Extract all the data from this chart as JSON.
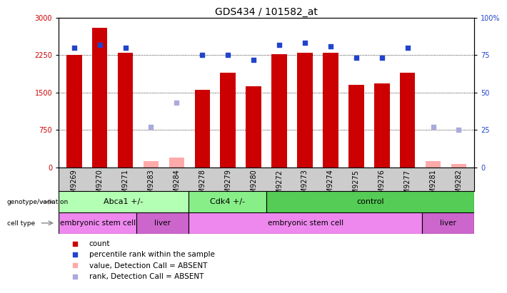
{
  "title": "GDS434 / 101582_at",
  "samples": [
    "GSM9269",
    "GSM9270",
    "GSM9271",
    "GSM9283",
    "GSM9284",
    "GSM9278",
    "GSM9279",
    "GSM9280",
    "GSM9272",
    "GSM9273",
    "GSM9274",
    "GSM9275",
    "GSM9276",
    "GSM9277",
    "GSM9281",
    "GSM9282"
  ],
  "counts": [
    2250,
    2800,
    2300,
    null,
    null,
    1550,
    1900,
    1620,
    2270,
    2300,
    2300,
    1660,
    1680,
    1900,
    null,
    null
  ],
  "absent_counts": [
    null,
    null,
    null,
    130,
    200,
    null,
    null,
    null,
    null,
    null,
    null,
    null,
    null,
    null,
    130,
    70
  ],
  "ranks": [
    80,
    82,
    80,
    null,
    null,
    75,
    75,
    72,
    82,
    83,
    81,
    73,
    73,
    80,
    null,
    null
  ],
  "absent_ranks": [
    null,
    null,
    null,
    27,
    43,
    null,
    null,
    null,
    null,
    null,
    null,
    null,
    null,
    null,
    27,
    25
  ],
  "ylim_left": [
    0,
    3000
  ],
  "ylim_right": [
    0,
    100
  ],
  "yticks_left": [
    0,
    750,
    1500,
    2250,
    3000
  ],
  "yticks_right": [
    0,
    25,
    50,
    75,
    100
  ],
  "genotype_groups": [
    {
      "label": "Abca1 +/-",
      "start": 0,
      "end": 5,
      "color": "#b3ffb3"
    },
    {
      "label": "Cdk4 +/-",
      "start": 5,
      "end": 8,
      "color": "#88ee88"
    },
    {
      "label": "control",
      "start": 8,
      "end": 16,
      "color": "#55cc55"
    }
  ],
  "celltype_groups": [
    {
      "label": "embryonic stem cell",
      "start": 0,
      "end": 3,
      "color": "#ee88ee"
    },
    {
      "label": "liver",
      "start": 3,
      "end": 5,
      "color": "#cc66cc"
    },
    {
      "label": "embryonic stem cell",
      "start": 5,
      "end": 14,
      "color": "#ee88ee"
    },
    {
      "label": "liver",
      "start": 14,
      "end": 16,
      "color": "#cc66cc"
    }
  ],
  "bar_color": "#cc0000",
  "absent_bar_color": "#ffaaaa",
  "rank_color": "#2244cc",
  "absent_rank_color": "#aaaadd",
  "grid_color": "#000000",
  "plot_bg_color": "#ffffff",
  "xtick_area_bg": "#cccccc",
  "title_fontsize": 10,
  "tick_fontsize": 7,
  "label_fontsize": 8,
  "legend_fontsize": 7.5
}
